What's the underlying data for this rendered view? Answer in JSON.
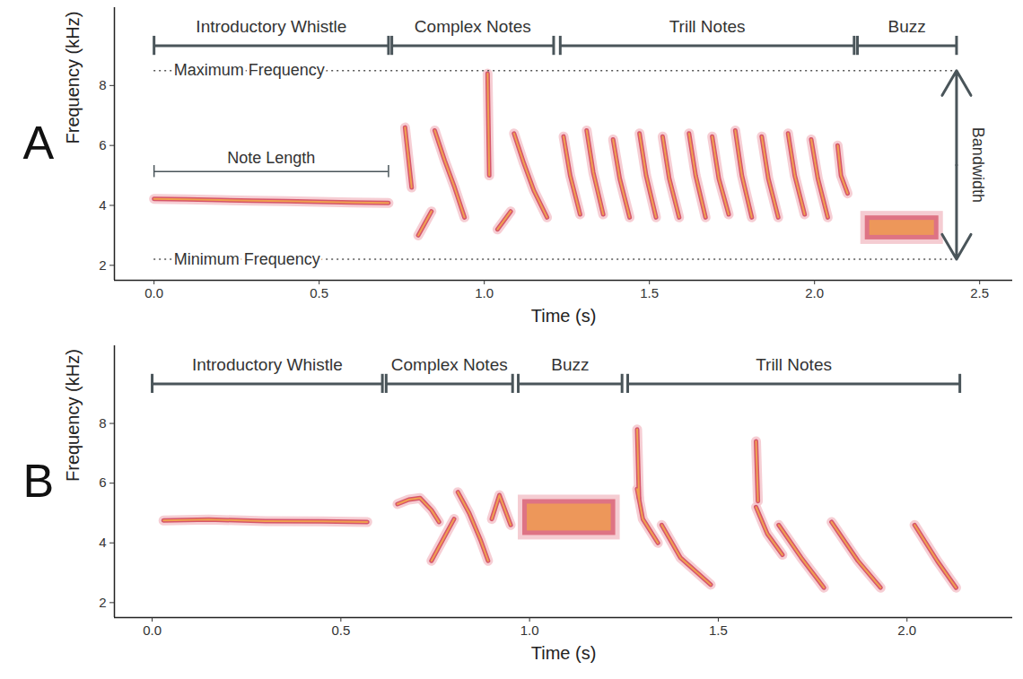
{
  "chart_data": [
    {
      "type": "spectrogram",
      "panel": "A",
      "x_label": "Time (s)",
      "y_label": "Frequency (kHz)",
      "xlim": [
        -0.12,
        2.6
      ],
      "xticks": [
        {
          "value": 0,
          "label": "0.0"
        },
        0.5,
        {
          "value": 1,
          "label": "1.0"
        },
        1.5,
        {
          "value": 2,
          "label": "2.0"
        },
        2.5
      ],
      "ylim": [
        1.5,
        10.6
      ],
      "yticks": [
        2,
        4,
        6,
        8
      ],
      "color": "#d6566a",
      "segments": [
        {
          "label": "Introductory Whistle",
          "start": 0,
          "end": 0.71
        },
        {
          "label": "Complex Notes",
          "start": 0.72,
          "end": 1.21
        },
        {
          "label": "Trill Notes",
          "start": 1.23,
          "end": 2.12
        },
        {
          "label": "Buzz",
          "start": 2.13,
          "end": 2.43
        }
      ],
      "notes": [
        {
          "time": [
            0,
            0.1,
            0.2,
            0.3,
            0.4,
            0.5,
            0.6,
            0.71
          ],
          "freq": [
            4.22,
            4.2,
            4.18,
            4.16,
            4.14,
            4.12,
            4.1,
            4.08
          ]
        },
        {
          "time": [
            0.76,
            0.77,
            0.78
          ],
          "freq": [
            6.6,
            5.6,
            4.6
          ]
        },
        {
          "time": [
            0.8,
            0.82,
            0.84
          ],
          "freq": [
            3.0,
            3.4,
            3.8
          ]
        },
        {
          "time": [
            0.85,
            0.88,
            0.91,
            0.94
          ],
          "freq": [
            6.5,
            5.5,
            4.6,
            3.6
          ]
        },
        {
          "time": [
            1.01,
            1.015
          ],
          "freq": [
            8.4,
            5.0
          ]
        },
        {
          "time": [
            1.04,
            1.06,
            1.08
          ],
          "freq": [
            3.2,
            3.5,
            3.8
          ]
        },
        {
          "time": [
            1.09,
            1.12,
            1.15,
            1.19
          ],
          "freq": [
            6.4,
            5.4,
            4.5,
            3.6
          ]
        },
        {
          "time": [
            1.24,
            1.26,
            1.29
          ],
          "freq": [
            6.3,
            5.0,
            3.7
          ]
        },
        {
          "time": [
            1.31,
            1.33,
            1.36
          ],
          "freq": [
            6.5,
            5.1,
            3.7
          ]
        },
        {
          "time": [
            1.39,
            1.41,
            1.44
          ],
          "freq": [
            6.2,
            4.9,
            3.6
          ]
        },
        {
          "time": [
            1.47,
            1.49,
            1.52
          ],
          "freq": [
            6.4,
            5.0,
            3.6
          ]
        },
        {
          "time": [
            1.54,
            1.56,
            1.59
          ],
          "freq": [
            6.3,
            4.9,
            3.6
          ]
        },
        {
          "time": [
            1.62,
            1.64,
            1.67
          ],
          "freq": [
            6.4,
            5.0,
            3.6
          ]
        },
        {
          "time": [
            1.69,
            1.71,
            1.74
          ],
          "freq": [
            6.3,
            4.9,
            3.7
          ]
        },
        {
          "time": [
            1.76,
            1.78,
            1.81
          ],
          "freq": [
            6.5,
            5.0,
            3.6
          ]
        },
        {
          "time": [
            1.84,
            1.86,
            1.89
          ],
          "freq": [
            6.3,
            4.9,
            3.6
          ]
        },
        {
          "time": [
            1.92,
            1.94,
            1.97
          ],
          "freq": [
            6.4,
            5.0,
            3.7
          ]
        },
        {
          "time": [
            1.99,
            2.01,
            2.04
          ],
          "freq": [
            6.2,
            4.9,
            3.6
          ]
        },
        {
          "time": [
            2.07,
            2.08,
            2.1
          ],
          "freq": [
            6.0,
            5.0,
            4.4
          ]
        }
      ],
      "buzz": {
        "time": [
          2.14,
          2.39
        ],
        "freq": [
          2.7,
          3.8
        ]
      },
      "maximum_frequency": {
        "label": "Maximum Frequency",
        "value": 8.5
      },
      "minimum_frequency": {
        "label": "Minimum Frequency",
        "value": 2.2
      },
      "note_length": {
        "label": "Note Length",
        "start": 0,
        "end": 0.71
      },
      "bandwidth": {
        "label": "Bandwidth"
      }
    },
    {
      "type": "spectrogram",
      "panel": "B",
      "x_label": "Time (s)",
      "y_label": "Frequency (kHz)",
      "xlim": [
        -0.1,
        2.28
      ],
      "xticks": [
        {
          "value": 0,
          "label": "0.0"
        },
        0.5,
        {
          "value": 1,
          "label": "1.0"
        },
        1.5,
        {
          "value": 2,
          "label": "2.0"
        }
      ],
      "ylim": [
        1.5,
        10.6
      ],
      "yticks": [
        2,
        4,
        6,
        8
      ],
      "color": "#d6566a",
      "segments": [
        {
          "label": "Introductory Whistle",
          "start": 0,
          "end": 0.61
        },
        {
          "label": "Complex Notes",
          "start": 0.62,
          "end": 0.955
        },
        {
          "label": "Buzz",
          "start": 0.97,
          "end": 1.245
        },
        {
          "label": "Trill Notes",
          "start": 1.26,
          "end": 2.14
        }
      ],
      "notes": [
        {
          "time": [
            0.03,
            0.15,
            0.3,
            0.45,
            0.57
          ],
          "freq": [
            4.75,
            4.78,
            4.73,
            4.72,
            4.7
          ]
        },
        {
          "time": [
            0.65,
            0.68,
            0.71,
            0.74,
            0.76
          ],
          "freq": [
            5.3,
            5.45,
            5.5,
            5.1,
            4.7
          ]
        },
        {
          "time": [
            0.74,
            0.77,
            0.8
          ],
          "freq": [
            3.4,
            4.1,
            4.8
          ]
        },
        {
          "time": [
            0.81,
            0.84,
            0.87,
            0.89
          ],
          "freq": [
            5.7,
            5.0,
            4.1,
            3.4
          ]
        },
        {
          "time": [
            0.9,
            0.92,
            0.95
          ],
          "freq": [
            4.8,
            5.6,
            4.6
          ]
        },
        {
          "time": [
            1.285,
            1.29
          ],
          "freq": [
            7.8,
            5.5
          ]
        },
        {
          "time": [
            1.285,
            1.3,
            1.34
          ],
          "freq": [
            5.8,
            4.8,
            4.0
          ]
        },
        {
          "time": [
            1.35,
            1.4,
            1.48
          ],
          "freq": [
            4.6,
            3.5,
            2.6
          ]
        },
        {
          "time": [
            1.6,
            1.605
          ],
          "freq": [
            7.4,
            5.4
          ]
        },
        {
          "time": [
            1.6,
            1.63,
            1.67
          ],
          "freq": [
            5.2,
            4.3,
            3.6
          ]
        },
        {
          "time": [
            1.66,
            1.72,
            1.78
          ],
          "freq": [
            4.6,
            3.5,
            2.5
          ]
        },
        {
          "time": [
            1.8,
            1.87,
            1.93
          ],
          "freq": [
            4.7,
            3.4,
            2.5
          ]
        },
        {
          "time": [
            2.02,
            2.08,
            2.13
          ],
          "freq": [
            4.6,
            3.4,
            2.5
          ]
        }
      ],
      "buzz": {
        "time": [
          0.97,
          1.24
        ],
        "freq": [
          4.1,
          5.6
        ]
      }
    }
  ]
}
